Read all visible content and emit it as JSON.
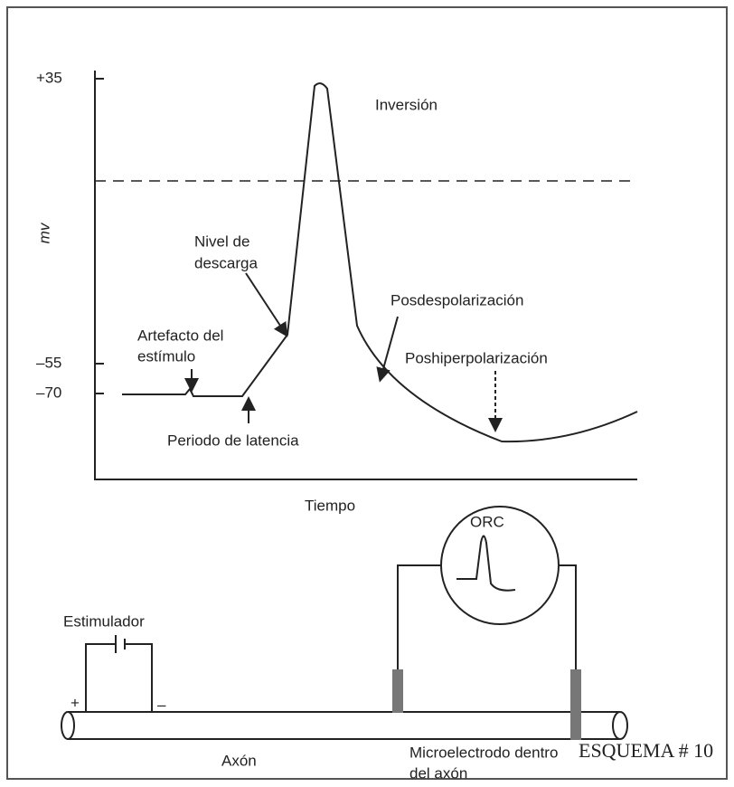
{
  "yaxis": {
    "ticks": [
      "+35",
      "–55",
      "–70"
    ],
    "label": "mv"
  },
  "xaxis": {
    "label": "Tiempo"
  },
  "annotations": {
    "inversion": "Inversión",
    "threshold": [
      "Nivel de",
      "descarga"
    ],
    "artifact": [
      "Artefacto del",
      "estímulo"
    ],
    "latency": "Periodo de latencia",
    "afterdepolarization": "Posdespolarización",
    "afterhyperpolarization": "Poshiperpolarización"
  },
  "setup": {
    "oscilloscope": "ORC",
    "stimulator": "Estimulador",
    "plus": "+",
    "minus": "–",
    "axon": "Axón",
    "electrode": [
      "Microelectrodo dentro",
      "del axón"
    ]
  },
  "footer": "ESQUEMA # 10"
}
